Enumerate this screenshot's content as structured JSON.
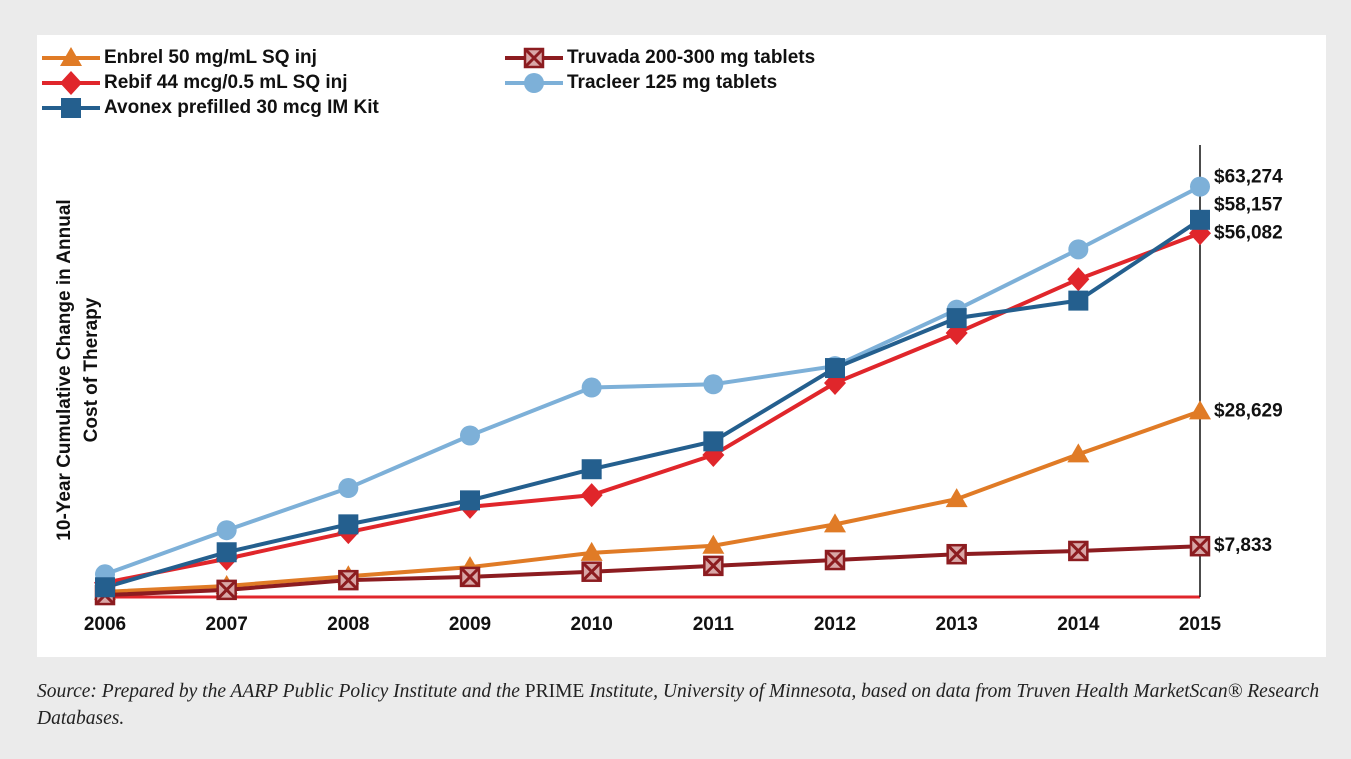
{
  "chart_data": {
    "type": "line",
    "ylabel": [
      "10-Year Cumulative Change in Annual",
      "Cost of Therapy"
    ],
    "x": [
      "2006",
      "2007",
      "2008",
      "2009",
      "2010",
      "2011",
      "2012",
      "2013",
      "2014",
      "2015"
    ],
    "ylim": [
      0,
      70000
    ],
    "series": [
      {
        "name": "Enbrel 50 mg/mL SQ inj",
        "color": "#e07b26",
        "marker": "triangle",
        "values": [
          800,
          1700,
          3200,
          4600,
          6800,
          7900,
          11200,
          15100,
          22000,
          28629
        ],
        "value_labels": [
          null,
          null,
          null,
          null,
          null,
          null,
          null,
          null,
          null,
          "$28,629"
        ]
      },
      {
        "name": "Truvada 200-300 mg tablets",
        "color": "#8c1c20",
        "marker": "boxx",
        "values": [
          300,
          1100,
          2600,
          3100,
          3900,
          4800,
          5700,
          6600,
          7100,
          7833
        ],
        "value_labels": [
          null,
          null,
          null,
          null,
          null,
          null,
          null,
          null,
          null,
          "$7,833"
        ]
      },
      {
        "name": "Rebif 44 mcg/0.5 mL SQ inj",
        "color": "#e0262b",
        "marker": "diamond",
        "values": [
          2200,
          5900,
          10000,
          13900,
          15700,
          21900,
          33000,
          40700,
          49000,
          56082
        ],
        "value_labels": [
          null,
          null,
          null,
          null,
          null,
          null,
          null,
          null,
          null,
          "$56,082"
        ]
      },
      {
        "name": "Tracleer 125 mg tablets",
        "color": "#7db0d8",
        "marker": "circle",
        "values": [
          3500,
          10300,
          16800,
          24900,
          32300,
          32800,
          35600,
          44300,
          53600,
          63274
        ],
        "value_labels": [
          null,
          null,
          null,
          null,
          null,
          null,
          null,
          null,
          null,
          "$63,274"
        ]
      },
      {
        "name": "Avonex prefilled 30 mcg IM Kit",
        "color": "#245f8e",
        "marker": "square",
        "values": [
          1500,
          6900,
          11200,
          14900,
          19700,
          24000,
          35300,
          43000,
          45700,
          58157
        ],
        "value_labels": [
          null,
          null,
          null,
          null,
          null,
          null,
          null,
          null,
          null,
          "$58,157"
        ]
      }
    ],
    "axis_color": "#e0262b",
    "source": [
      "Source: Prepared by the AARP Public Policy Institute and the ",
      "PRIME",
      " Institute, University of Minnesota, based on data from Truven Health MarketScan® Research Databases."
    ]
  }
}
